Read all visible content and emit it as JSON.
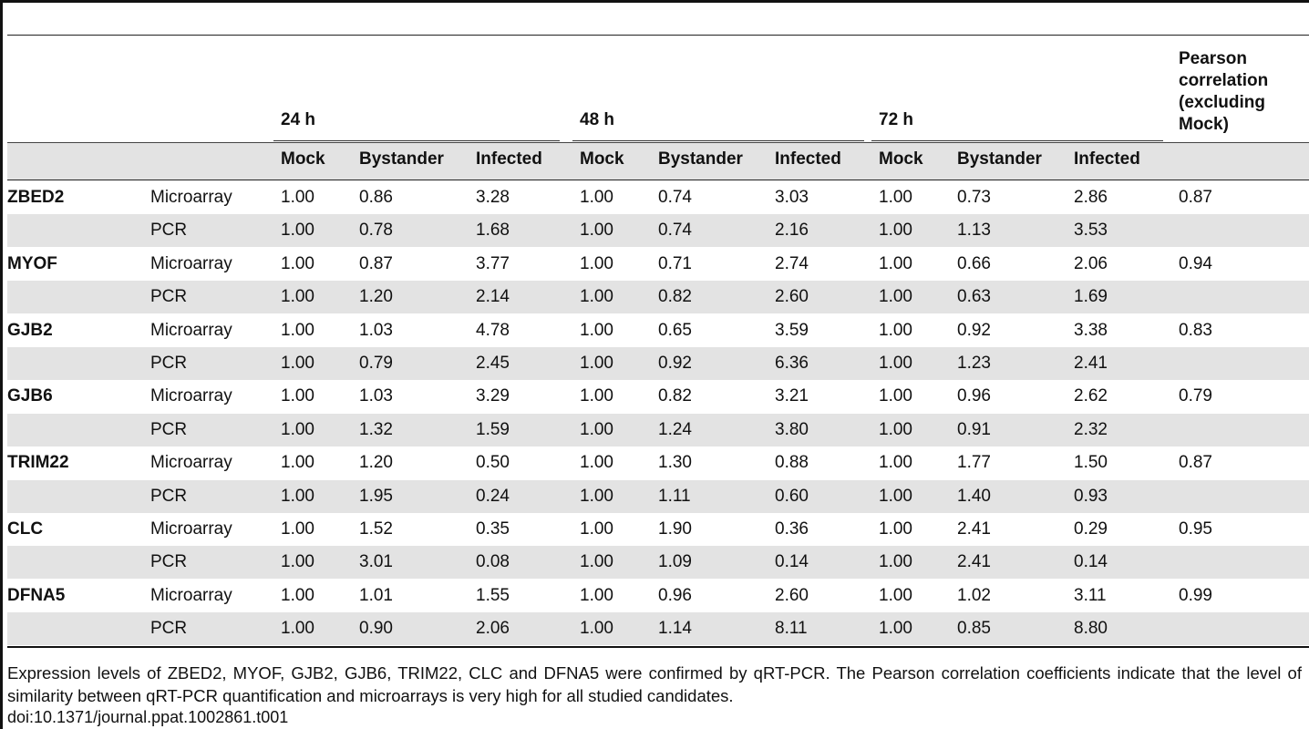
{
  "table": {
    "groups": [
      "24 h",
      "48 h",
      "72 h"
    ],
    "pearson_header": "Pearson correlation (excluding Mock)",
    "subheaders": [
      "Mock",
      "Bystander",
      "Infected",
      "Mock",
      "Bystander",
      "Infected",
      "Mock",
      "Bystander",
      "Infected"
    ],
    "rows": [
      {
        "gene": "ZBED2",
        "method": "Microarray",
        "values": [
          "1.00",
          "0.86",
          "3.28",
          "1.00",
          "0.74",
          "3.03",
          "1.00",
          "0.73",
          "2.86"
        ],
        "pearson": "0.87"
      },
      {
        "gene": "",
        "method": "PCR",
        "values": [
          "1.00",
          "0.78",
          "1.68",
          "1.00",
          "0.74",
          "2.16",
          "1.00",
          "1.13",
          "3.53"
        ],
        "pearson": ""
      },
      {
        "gene": "MYOF",
        "method": "Microarray",
        "values": [
          "1.00",
          "0.87",
          "3.77",
          "1.00",
          "0.71",
          "2.74",
          "1.00",
          "0.66",
          "2.06"
        ],
        "pearson": "0.94"
      },
      {
        "gene": "",
        "method": "PCR",
        "values": [
          "1.00",
          "1.20",
          "2.14",
          "1.00",
          "0.82",
          "2.60",
          "1.00",
          "0.63",
          "1.69"
        ],
        "pearson": ""
      },
      {
        "gene": "GJB2",
        "method": "Microarray",
        "values": [
          "1.00",
          "1.03",
          "4.78",
          "1.00",
          "0.65",
          "3.59",
          "1.00",
          "0.92",
          "3.38"
        ],
        "pearson": "0.83"
      },
      {
        "gene": "",
        "method": "PCR",
        "values": [
          "1.00",
          "0.79",
          "2.45",
          "1.00",
          "0.92",
          "6.36",
          "1.00",
          "1.23",
          "2.41"
        ],
        "pearson": ""
      },
      {
        "gene": "GJB6",
        "method": "Microarray",
        "values": [
          "1.00",
          "1.03",
          "3.29",
          "1.00",
          "0.82",
          "3.21",
          "1.00",
          "0.96",
          "2.62"
        ],
        "pearson": "0.79"
      },
      {
        "gene": "",
        "method": "PCR",
        "values": [
          "1.00",
          "1.32",
          "1.59",
          "1.00",
          "1.24",
          "3.80",
          "1.00",
          "0.91",
          "2.32"
        ],
        "pearson": ""
      },
      {
        "gene": "TRIM22",
        "method": "Microarray",
        "values": [
          "1.00",
          "1.20",
          "0.50",
          "1.00",
          "1.30",
          "0.88",
          "1.00",
          "1.77",
          "1.50"
        ],
        "pearson": "0.87"
      },
      {
        "gene": "",
        "method": "PCR",
        "values": [
          "1.00",
          "1.95",
          "0.24",
          "1.00",
          "1.11",
          "0.60",
          "1.00",
          "1.40",
          "0.93"
        ],
        "pearson": ""
      },
      {
        "gene": "CLC",
        "method": "Microarray",
        "values": [
          "1.00",
          "1.52",
          "0.35",
          "1.00",
          "1.90",
          "0.36",
          "1.00",
          "2.41",
          "0.29"
        ],
        "pearson": "0.95"
      },
      {
        "gene": "",
        "method": "PCR",
        "values": [
          "1.00",
          "3.01",
          "0.08",
          "1.00",
          "1.09",
          "0.14",
          "1.00",
          "2.41",
          "0.14"
        ],
        "pearson": ""
      },
      {
        "gene": "DFNA5",
        "method": "Microarray",
        "values": [
          "1.00",
          "1.01",
          "1.55",
          "1.00",
          "0.96",
          "2.60",
          "1.00",
          "1.02",
          "3.11"
        ],
        "pearson": "0.99"
      },
      {
        "gene": "",
        "method": "PCR",
        "values": [
          "1.00",
          "0.90",
          "2.06",
          "1.00",
          "1.14",
          "8.11",
          "1.00",
          "0.85",
          "8.80"
        ],
        "pearson": ""
      }
    ]
  },
  "caption": "Expression levels of ZBED2, MYOF, GJB2, GJB6, TRIM22, CLC and DFNA5 were confirmed by qRT-PCR. The Pearson correlation coefficients indicate that the level of similarity between qRT-PCR quantification and microarrays is very high for all studied candidates.",
  "doi": "doi:10.1371/journal.ppat.1002861.t001"
}
